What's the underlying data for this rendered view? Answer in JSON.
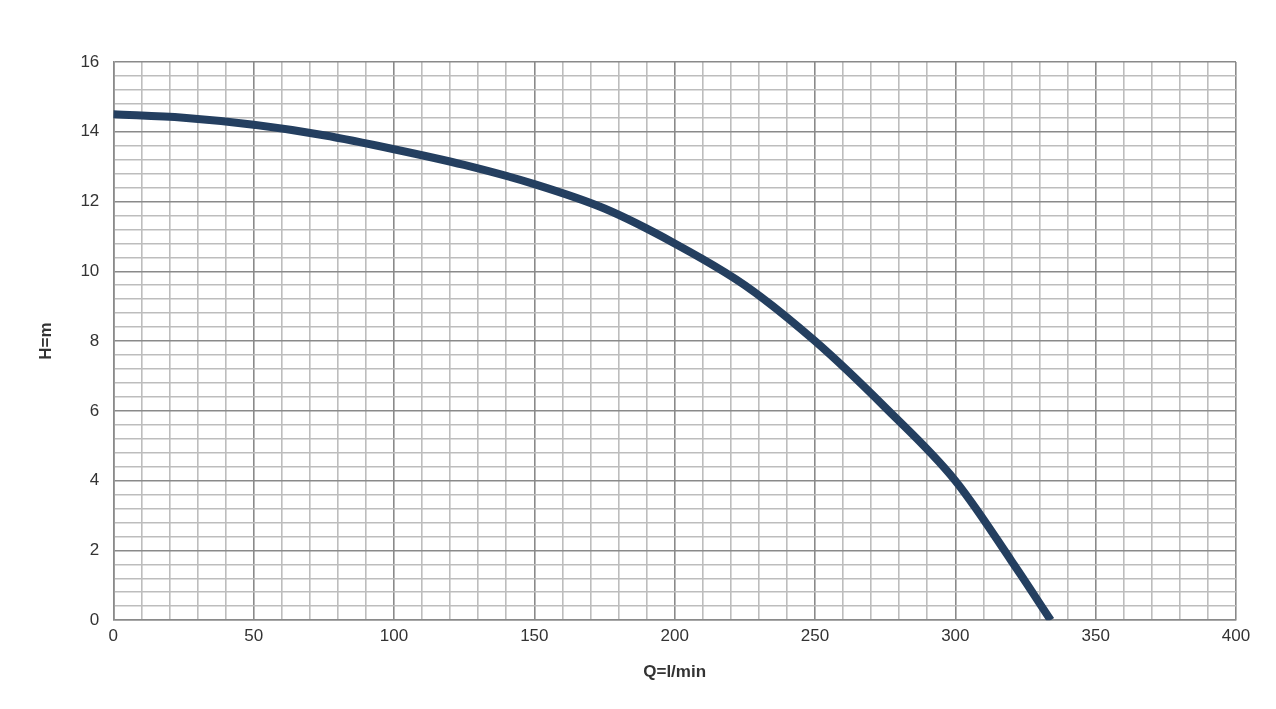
{
  "chart_data": {
    "type": "line",
    "xlabel": "Q=l/min",
    "ylabel": "H=m",
    "x": [
      0,
      25,
      50,
      75,
      100,
      125,
      150,
      175,
      200,
      225,
      250,
      275,
      300,
      320,
      334
    ],
    "series": [
      {
        "color": "#243f60",
        "values": [
          14.5,
          14.4,
          14.2,
          13.9,
          13.5,
          13.05,
          12.5,
          11.8,
          10.8,
          9.6,
          8.0,
          6.1,
          4.0,
          1.7,
          0
        ]
      }
    ],
    "xlim": [
      0,
      400
    ],
    "ylim": [
      0,
      16
    ],
    "xticks": [
      0,
      {
        "value": 10,
        "label": null
      },
      {
        "value": 20,
        "label": null
      },
      {
        "value": 30,
        "label": null
      },
      {
        "value": 40,
        "label": null
      },
      50,
      {
        "value": 60,
        "label": null
      },
      {
        "value": 70,
        "label": null
      },
      {
        "value": 80,
        "label": null
      },
      {
        "value": 90,
        "label": null
      },
      100,
      {
        "value": 110,
        "label": null
      },
      {
        "value": 120,
        "label": null
      },
      {
        "value": 130,
        "label": null
      },
      {
        "value": 140,
        "label": null
      },
      150,
      {
        "value": 160,
        "label": null
      },
      {
        "value": 170,
        "label": null
      },
      {
        "value": 180,
        "label": null
      },
      {
        "value": 190,
        "label": null
      },
      200,
      {
        "value": 210,
        "label": null
      },
      {
        "value": 220,
        "label": null
      },
      {
        "value": 230,
        "label": null
      },
      {
        "value": 240,
        "label": null
      },
      250,
      {
        "value": 260,
        "label": null
      },
      {
        "value": 270,
        "label": null
      },
      {
        "value": 280,
        "label": null
      },
      {
        "value": 290,
        "label": null
      },
      300,
      {
        "value": 310,
        "label": null
      },
      {
        "value": 320,
        "label": null
      },
      {
        "value": 330,
        "label": null
      },
      {
        "value": 340,
        "label": null
      },
      350,
      {
        "value": 360,
        "label": null
      },
      {
        "value": 370,
        "label": null
      },
      {
        "value": 380,
        "label": null
      },
      {
        "value": 390,
        "label": null
      },
      400
    ],
    "yticks": [
      0,
      {
        "value": 0.4,
        "label": null
      },
      {
        "value": 0.8,
        "label": null
      },
      {
        "value": 1.2,
        "label": null
      },
      {
        "value": 1.6,
        "label": null
      },
      2,
      {
        "value": 2.4,
        "label": null
      },
      {
        "value": 2.8,
        "label": null
      },
      {
        "value": 3.2,
        "label": null
      },
      {
        "value": 3.6,
        "label": null
      },
      4,
      {
        "value": 4.4,
        "label": null
      },
      {
        "value": 4.8,
        "label": null
      },
      {
        "value": 5.2,
        "label": null
      },
      {
        "value": 5.6,
        "label": null
      },
      6,
      {
        "value": 6.4,
        "label": null
      },
      {
        "value": 6.8,
        "label": null
      },
      {
        "value": 7.2,
        "label": null
      },
      {
        "value": 7.6,
        "label": null
      },
      8,
      {
        "value": 8.4,
        "label": null
      },
      {
        "value": 8.8,
        "label": null
      },
      {
        "value": 9.2,
        "label": null
      },
      {
        "value": 9.6,
        "label": null
      },
      10,
      {
        "value": 10.4,
        "label": null
      },
      {
        "value": 10.8,
        "label": null
      },
      {
        "value": 11.2,
        "label": null
      },
      {
        "value": 11.6,
        "label": null
      },
      12,
      {
        "value": 12.4,
        "label": null
      },
      {
        "value": 12.8,
        "label": null
      },
      {
        "value": 13.2,
        "label": null
      },
      {
        "value": 13.6,
        "label": null
      },
      14,
      {
        "value": 14.4,
        "label": null
      },
      {
        "value": 14.8,
        "label": null
      },
      {
        "value": 15.2,
        "label": null
      },
      {
        "value": 15.6,
        "label": null
      },
      16
    ],
    "grid": true,
    "marker": "none",
    "line_style": "solid",
    "legend": false
  }
}
